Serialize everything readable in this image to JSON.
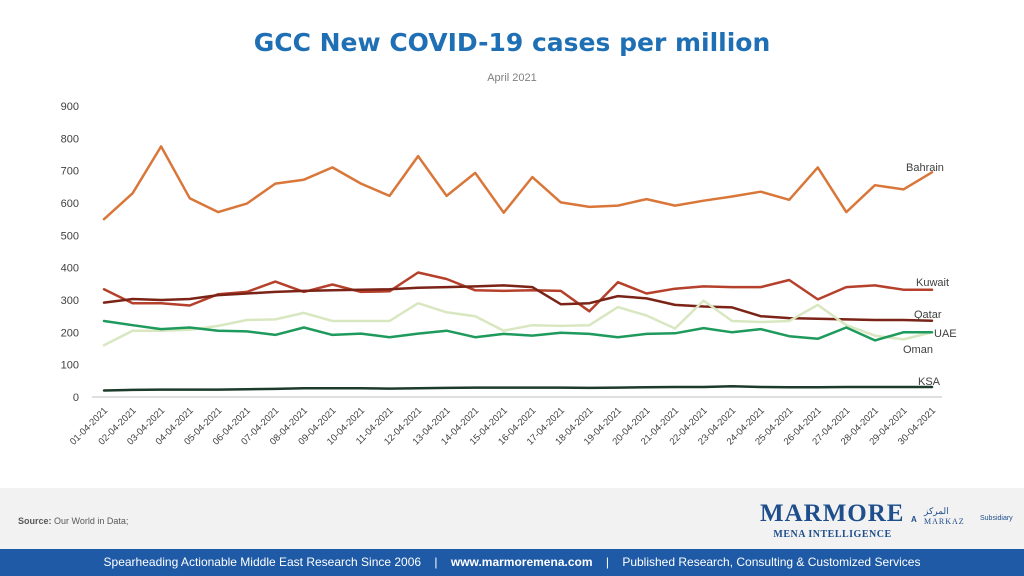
{
  "header": {
    "title": "GCC New COVID-19 cases per million",
    "subtitle": "April 2021"
  },
  "source": {
    "label": "Source:",
    "text": "Our World in Data;"
  },
  "logo": {
    "name": "MARMORE",
    "tagline": "MENA INTELLIGENCE",
    "a_text": "A",
    "parent_arabic": "المركز",
    "parent_name": "MARKAZ",
    "subsidiary": "Subsidiary"
  },
  "footer": {
    "left": "Spearheading Actionable Middle East Research Since 2006",
    "sep1": "|",
    "www_prefix": "www.",
    "www_brand": "marmore",
    "www_suffix": "mena.com",
    "sep2": "|",
    "right": "Published Research, Consulting & Customized Services"
  },
  "chart_data": {
    "type": "line",
    "title": "GCC New COVID-19 cases per million",
    "subtitle": "April 2021",
    "ylim": [
      0,
      900
    ],
    "yticks": [
      "0",
      "100",
      "200",
      "300",
      "400",
      "500",
      "600",
      "700",
      "800",
      "900"
    ],
    "grid": false,
    "legend": "inline-right",
    "x": [
      "01-04-2021",
      "02-04-2021",
      "03-04-2021",
      "04-04-2021",
      "05-04-2021",
      "06-04-2021",
      "07-04-2021",
      "08-04-2021",
      "09-04-2021",
      "10-04-2021",
      "11-04-2021",
      "12-04-2021",
      "13-04-2021",
      "14-04-2021",
      "15-04-2021",
      "16-04-2021",
      "17-04-2021",
      "18-04-2021",
      "19-04-2021",
      "20-04-2021",
      "21-04-2021",
      "22-04-2021",
      "23-04-2021",
      "24-04-2021",
      "25-04-2021",
      "26-04-2021",
      "27-04-2021",
      "28-04-2021",
      "29-04-2021",
      "30-04-2021"
    ],
    "series": [
      {
        "name": "Bahrain",
        "color": "#d9773a",
        "values": [
          550,
          630,
          775,
          615,
          572,
          598,
          660,
          672,
          710,
          660,
          622,
          745,
          622,
          693,
          570,
          680,
          602,
          588,
          592,
          612,
          592,
          607,
          620,
          635,
          610,
          710,
          572,
          655,
          642,
          695
        ]
      },
      {
        "name": "Kuwait",
        "color": "#b5402b",
        "values": [
          333,
          290,
          290,
          283,
          318,
          325,
          357,
          325,
          348,
          325,
          327,
          385,
          365,
          330,
          328,
          330,
          328,
          265,
          355,
          320,
          335,
          342,
          340,
          340,
          362,
          302,
          340,
          345,
          332,
          332
        ]
      },
      {
        "name": "Qatar",
        "color": "#7b2317",
        "values": [
          292,
          303,
          300,
          303,
          315,
          320,
          325,
          328,
          330,
          332,
          333,
          338,
          340,
          342,
          345,
          340,
          287,
          290,
          312,
          305,
          285,
          280,
          277,
          250,
          244,
          242,
          240,
          238,
          238,
          236
        ]
      },
      {
        "name": "Oman",
        "color": "#d9e7c1",
        "values": [
          160,
          205,
          205,
          208,
          220,
          238,
          240,
          260,
          235,
          235,
          235,
          290,
          262,
          250,
          205,
          222,
          220,
          222,
          278,
          252,
          212,
          298,
          235,
          232,
          235,
          285,
          222,
          190,
          178,
          200
        ]
      },
      {
        "name": "UAE",
        "color": "#1e9a5c",
        "values": [
          235,
          222,
          210,
          215,
          205,
          203,
          192,
          215,
          192,
          196,
          185,
          196,
          205,
          185,
          195,
          190,
          199,
          195,
          185,
          195,
          197,
          213,
          200,
          210,
          188,
          180,
          215,
          175,
          200,
          200
        ]
      },
      {
        "name": "KSA",
        "color": "#1d3b2b",
        "values": [
          20,
          22,
          23,
          23,
          23,
          24,
          25,
          27,
          27,
          27,
          26,
          27,
          28,
          29,
          29,
          29,
          29,
          28,
          29,
          30,
          31,
          31,
          33,
          31,
          30,
          30,
          31,
          31,
          31,
          31
        ]
      }
    ]
  }
}
